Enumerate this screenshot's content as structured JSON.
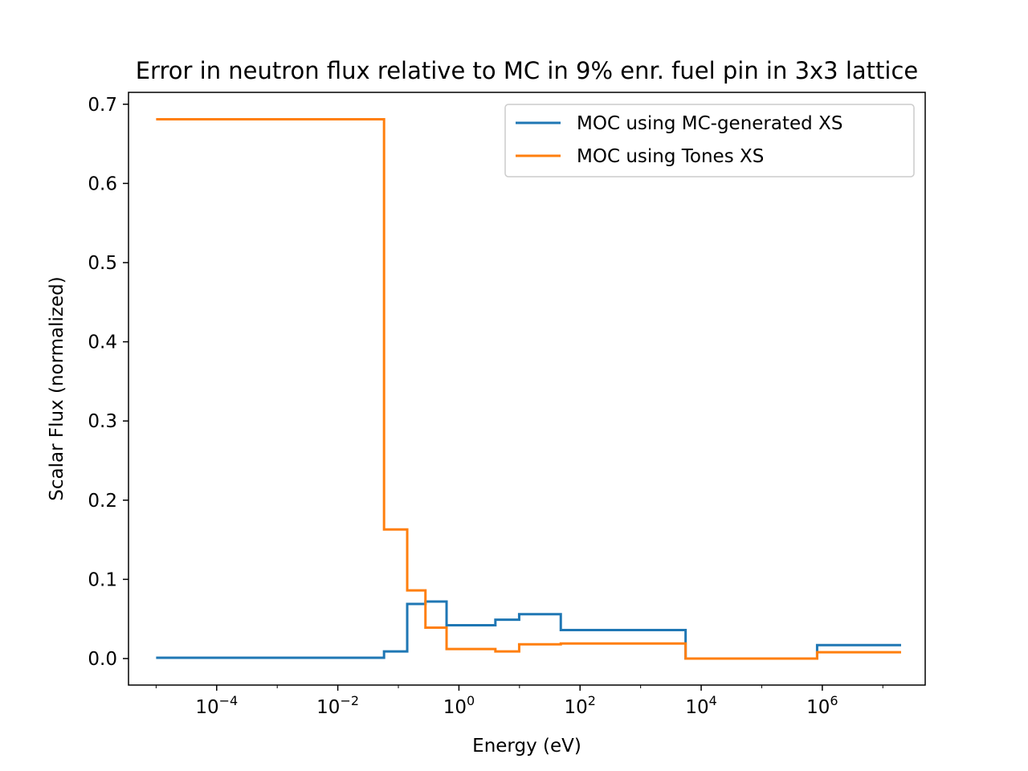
{
  "chart_data": {
    "type": "line",
    "step": "post",
    "title": "Error in neutron flux relative to MC in 9% enr. fuel pin in 3x3 lattice",
    "xlabel": "Energy (eV)",
    "ylabel": "Scalar Flux (normalized)",
    "xscale": "log",
    "xlim": [
      3.5e-06,
      50000000
    ],
    "ylim": [
      -0.0335,
      0.715
    ],
    "x_ticks": [
      {
        "value": 0.0001,
        "base": "10",
        "exp": "−4"
      },
      {
        "value": 0.01,
        "base": "10",
        "exp": "−2"
      },
      {
        "value": 1,
        "base": "10",
        "exp": "0"
      },
      {
        "value": 100,
        "base": "10",
        "exp": "2"
      },
      {
        "value": 10000,
        "base": "10",
        "exp": "4"
      },
      {
        "value": 1000000,
        "base": "10",
        "exp": "6"
      }
    ],
    "y_ticks": [
      {
        "value": 0.0,
        "label": "0.0"
      },
      {
        "value": 0.1,
        "label": "0.1"
      },
      {
        "value": 0.2,
        "label": "0.2"
      },
      {
        "value": 0.3,
        "label": "0.3"
      },
      {
        "value": 0.4,
        "label": "0.4"
      },
      {
        "value": 0.5,
        "label": "0.5"
      },
      {
        "value": 0.6,
        "label": "0.6"
      },
      {
        "value": 0.7,
        "label": "0.7"
      }
    ],
    "legend_position": "top-right",
    "series": [
      {
        "name": "MOC using MC-generated XS",
        "color": "#1f77b4",
        "x": [
          1e-05,
          0.058,
          0.14,
          0.28,
          0.625,
          4.0,
          9.88,
          48.05,
          5530,
          821000,
          20000000
        ],
        "y": [
          0.001,
          0.009,
          0.069,
          0.072,
          0.042,
          0.049,
          0.056,
          0.036,
          0.0,
          0.017,
          0.017
        ]
      },
      {
        "name": "MOC using Tones XS",
        "color": "#ff7f0e",
        "x": [
          1e-05,
          0.058,
          0.14,
          0.28,
          0.625,
          4.0,
          9.88,
          48.05,
          5530,
          821000,
          20000000
        ],
        "y": [
          0.681,
          0.163,
          0.086,
          0.039,
          0.012,
          0.009,
          0.018,
          0.019,
          0.0,
          0.008,
          0.008
        ]
      }
    ]
  }
}
